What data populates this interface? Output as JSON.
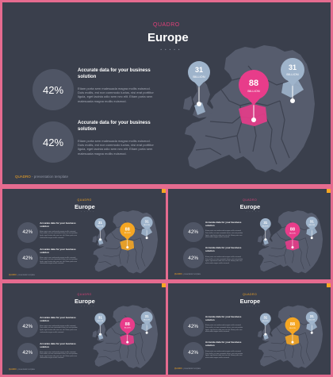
{
  "slide": {
    "brand": "QUADRO",
    "title": "Europe",
    "dots": "• • • • •",
    "stats": [
      {
        "value": "42%",
        "heading": "Accurate data for your business solution",
        "body": "Etiam porta sem malesuada magna mollis euismod. Duis mollis, est non commodo luctus, nisi erat porttitor ligula, eget lacinia odio sem nec elit. Etiam porta sem malesuada magna mollis euismod."
      },
      {
        "value": "42%",
        "heading": "Accurate data for your business solution",
        "body": "Etiam porta sem malesuada magna mollis euismod. Duis mollis, est non commodo luctus, nisi erat porttitor ligula, eget lacinia odio sem nec elit. Etiam porta sem malesuada magna mollis euismod."
      }
    ],
    "pins": [
      {
        "value": "31",
        "unit": "BILLION"
      },
      {
        "value": "88",
        "unit": "BILLION"
      },
      {
        "value": "31",
        "unit": "BILLION"
      }
    ],
    "footer": {
      "brand": "QUADRO",
      "text": " - presentation template"
    }
  },
  "variants": [
    {
      "brand_color": "#e0407a",
      "highlight_color": "#e83c8a",
      "corner_color": ""
    },
    {
      "brand_color": "#f5a623",
      "highlight_color": "#f5a623",
      "corner_color": "#f5a623"
    },
    {
      "brand_color": "#e0407a",
      "highlight_color": "#e83c8a",
      "corner_color": "#f5a623"
    },
    {
      "brand_color": "#e0407a",
      "highlight_color": "#e83c8a",
      "corner_color": "#f5a623"
    },
    {
      "brand_color": "#f5a623",
      "highlight_color": "#f5a623",
      "corner_color": "#f5a623"
    }
  ],
  "colors": {
    "background": "#3a3f4c",
    "map_land": "#565c6d",
    "map_borders": "#3d4250",
    "pin_neutral": "#9fb4cb",
    "circle": "#4f5565",
    "frame": "#e56b8f"
  }
}
